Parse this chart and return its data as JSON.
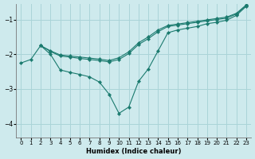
{
  "xlabel": "Humidex (Indice chaleur)",
  "background_color": "#ceeaed",
  "grid_color": "#aad4d8",
  "line_color": "#1a7a6e",
  "xlim": [
    -0.5,
    23.5
  ],
  "ylim": [
    -4.4,
    -0.55
  ],
  "yticks": [
    -4,
    -3,
    -2,
    -1
  ],
  "xticks": [
    0,
    1,
    2,
    3,
    4,
    5,
    6,
    7,
    8,
    9,
    10,
    11,
    12,
    13,
    14,
    15,
    16,
    17,
    18,
    19,
    20,
    21,
    22,
    23
  ],
  "s1_x": [
    0,
    1,
    2,
    3,
    4,
    5,
    6,
    7,
    8,
    9,
    10,
    11,
    12,
    13,
    14,
    15,
    16,
    17,
    18,
    19,
    20,
    21,
    22,
    23
  ],
  "s1_y": [
    -2.25,
    -2.15,
    -1.75,
    -2.0,
    -2.45,
    -2.52,
    -2.58,
    -2.65,
    -2.8,
    -3.15,
    -3.7,
    -3.52,
    -2.78,
    -2.42,
    -1.9,
    -1.38,
    -1.3,
    -1.25,
    -1.2,
    -1.12,
    -1.08,
    -1.02,
    -0.88,
    -0.62
  ],
  "s2_x": [
    2,
    3,
    4,
    5,
    6,
    7,
    8,
    9,
    10,
    11,
    12,
    13,
    14,
    15,
    16,
    17,
    18,
    19,
    20,
    21,
    22,
    23
  ],
  "s2_y": [
    -1.75,
    -1.92,
    -2.05,
    -2.08,
    -2.12,
    -2.15,
    -2.18,
    -2.22,
    -2.15,
    -1.98,
    -1.72,
    -1.55,
    -1.35,
    -1.2,
    -1.16,
    -1.12,
    -1.08,
    -1.04,
    -1.0,
    -0.96,
    -0.84,
    -0.6
  ],
  "s3_x": [
    2,
    3,
    4,
    5,
    6,
    7,
    8,
    9,
    10,
    11,
    12,
    13,
    14,
    15,
    16,
    17,
    18,
    19,
    20,
    21,
    22,
    23
  ],
  "s3_y": [
    -1.75,
    -1.9,
    -2.02,
    -2.05,
    -2.08,
    -2.11,
    -2.14,
    -2.18,
    -2.1,
    -1.93,
    -1.67,
    -1.5,
    -1.3,
    -1.17,
    -1.13,
    -1.09,
    -1.05,
    -1.01,
    -0.97,
    -0.93,
    -0.82,
    -0.58
  ]
}
